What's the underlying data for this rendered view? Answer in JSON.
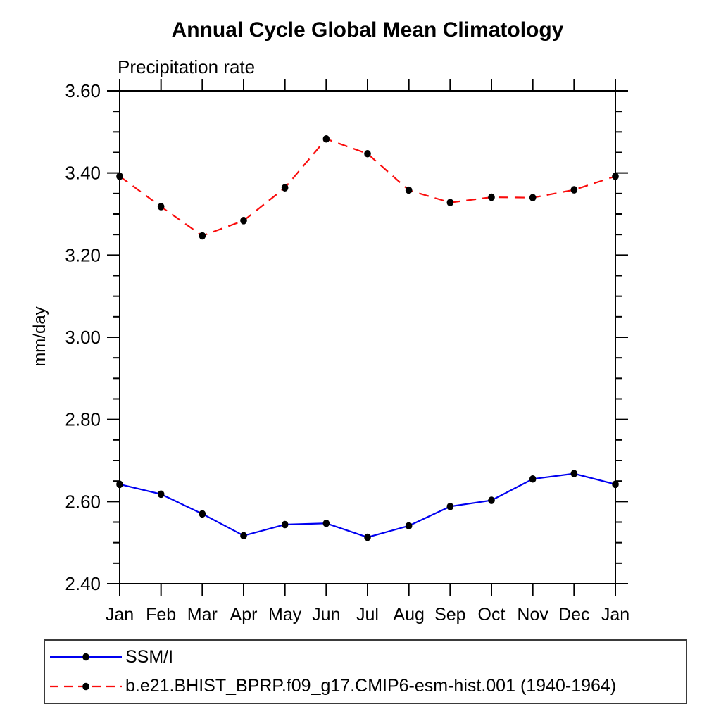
{
  "chart_data": {
    "type": "line",
    "title": "Annual Cycle Global Mean Climatology",
    "subtitle": "Precipitation rate",
    "ylabel": "mm/day",
    "xlabel": "",
    "grid": false,
    "legend_position": "bottom-left-box",
    "categories": [
      "Jan",
      "Feb",
      "Mar",
      "Apr",
      "May",
      "Jun",
      "Jul",
      "Aug",
      "Sep",
      "Oct",
      "Nov",
      "Dec",
      "Jan"
    ],
    "yaxis": {
      "min": 2.4,
      "max": 3.6,
      "major_ticks": [
        2.4,
        2.6,
        2.8,
        3.0,
        3.2,
        3.4,
        3.6
      ],
      "major_tick_labels": [
        "2.40",
        "2.60",
        "2.80",
        "3.00",
        "3.20",
        "3.40",
        "3.60"
      ],
      "minor_step": 0.05
    },
    "series": [
      {
        "name": "SSM/I",
        "color": "#0000f0",
        "line_style": "solid",
        "marker": "filled-circle",
        "marker_color": "#000000",
        "values": [
          2.642,
          2.618,
          2.57,
          2.517,
          2.544,
          2.547,
          2.513,
          2.541,
          2.588,
          2.603,
          2.655,
          2.668,
          2.642
        ]
      },
      {
        "name": "b.e21.BHIST_BPRP.f09_g17.CMIP6-esm-hist.001 (1940-1964)",
        "color": "#fa0c0c",
        "line_style": "dashed",
        "marker": "filled-circle",
        "marker_color": "#000000",
        "values": [
          3.392,
          3.318,
          3.247,
          3.284,
          3.364,
          3.483,
          3.447,
          3.358,
          3.328,
          3.341,
          3.34,
          3.359,
          3.392
        ]
      }
    ]
  }
}
